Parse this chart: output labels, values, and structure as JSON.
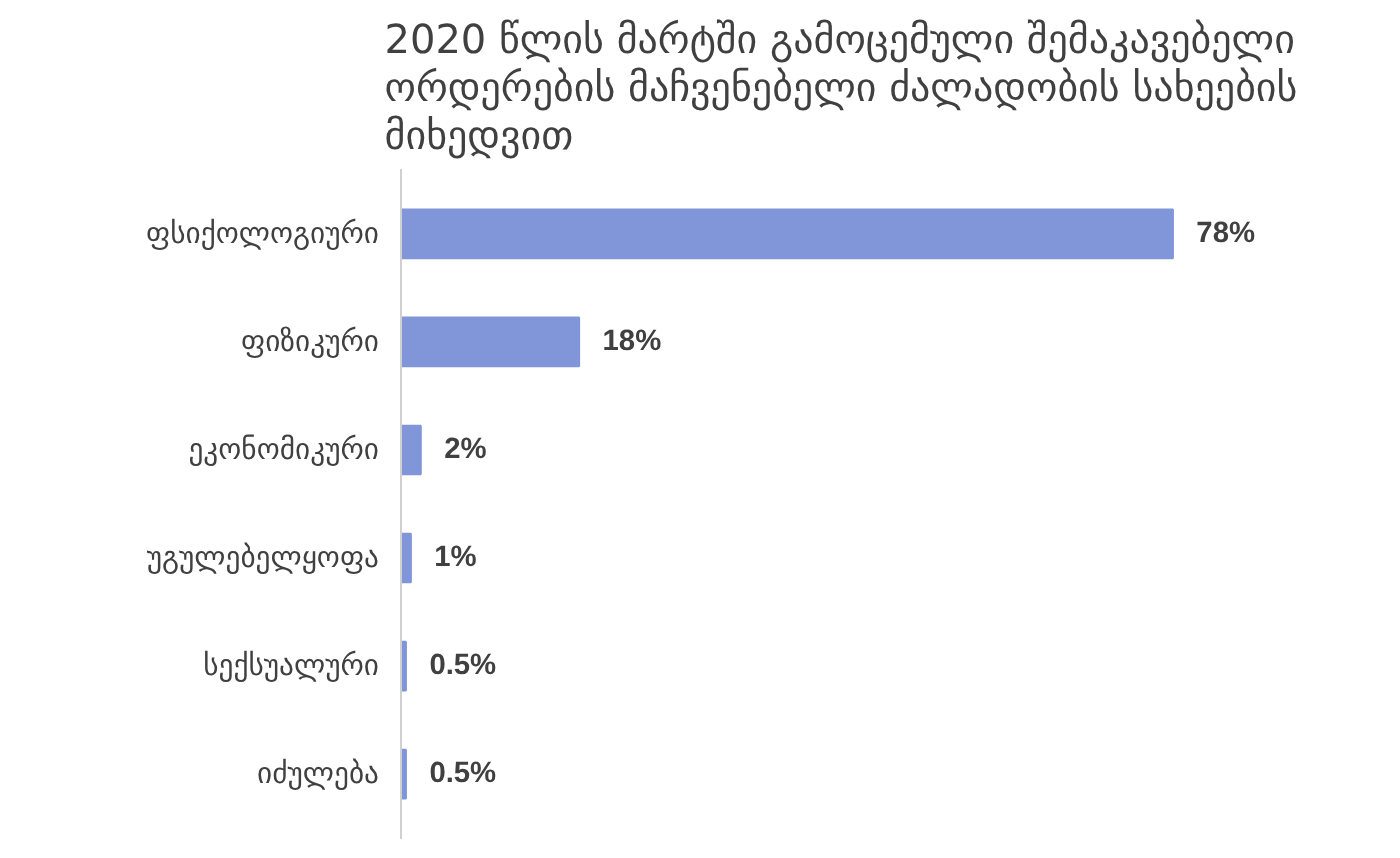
{
  "chart_data": {
    "type": "bar",
    "orientation": "horizontal",
    "title": "2020 წლის მარტში გამოცემული შემაკავებელი ორდერების მაჩვენებელი ძალადობის სახეების მიხედვით",
    "categories": [
      "ფსიქოლოგიური",
      "ფიზიკური",
      "ეკონომიკური",
      "უგულებელყოფა",
      "სექსუალური",
      "იძულება"
    ],
    "values": [
      78,
      18,
      2,
      1,
      0.5,
      0.5
    ],
    "value_labels": [
      "78%",
      "18%",
      "2%",
      "1%",
      "0.5%",
      "0.5%"
    ],
    "color": "#8096d8",
    "grid": false
  }
}
